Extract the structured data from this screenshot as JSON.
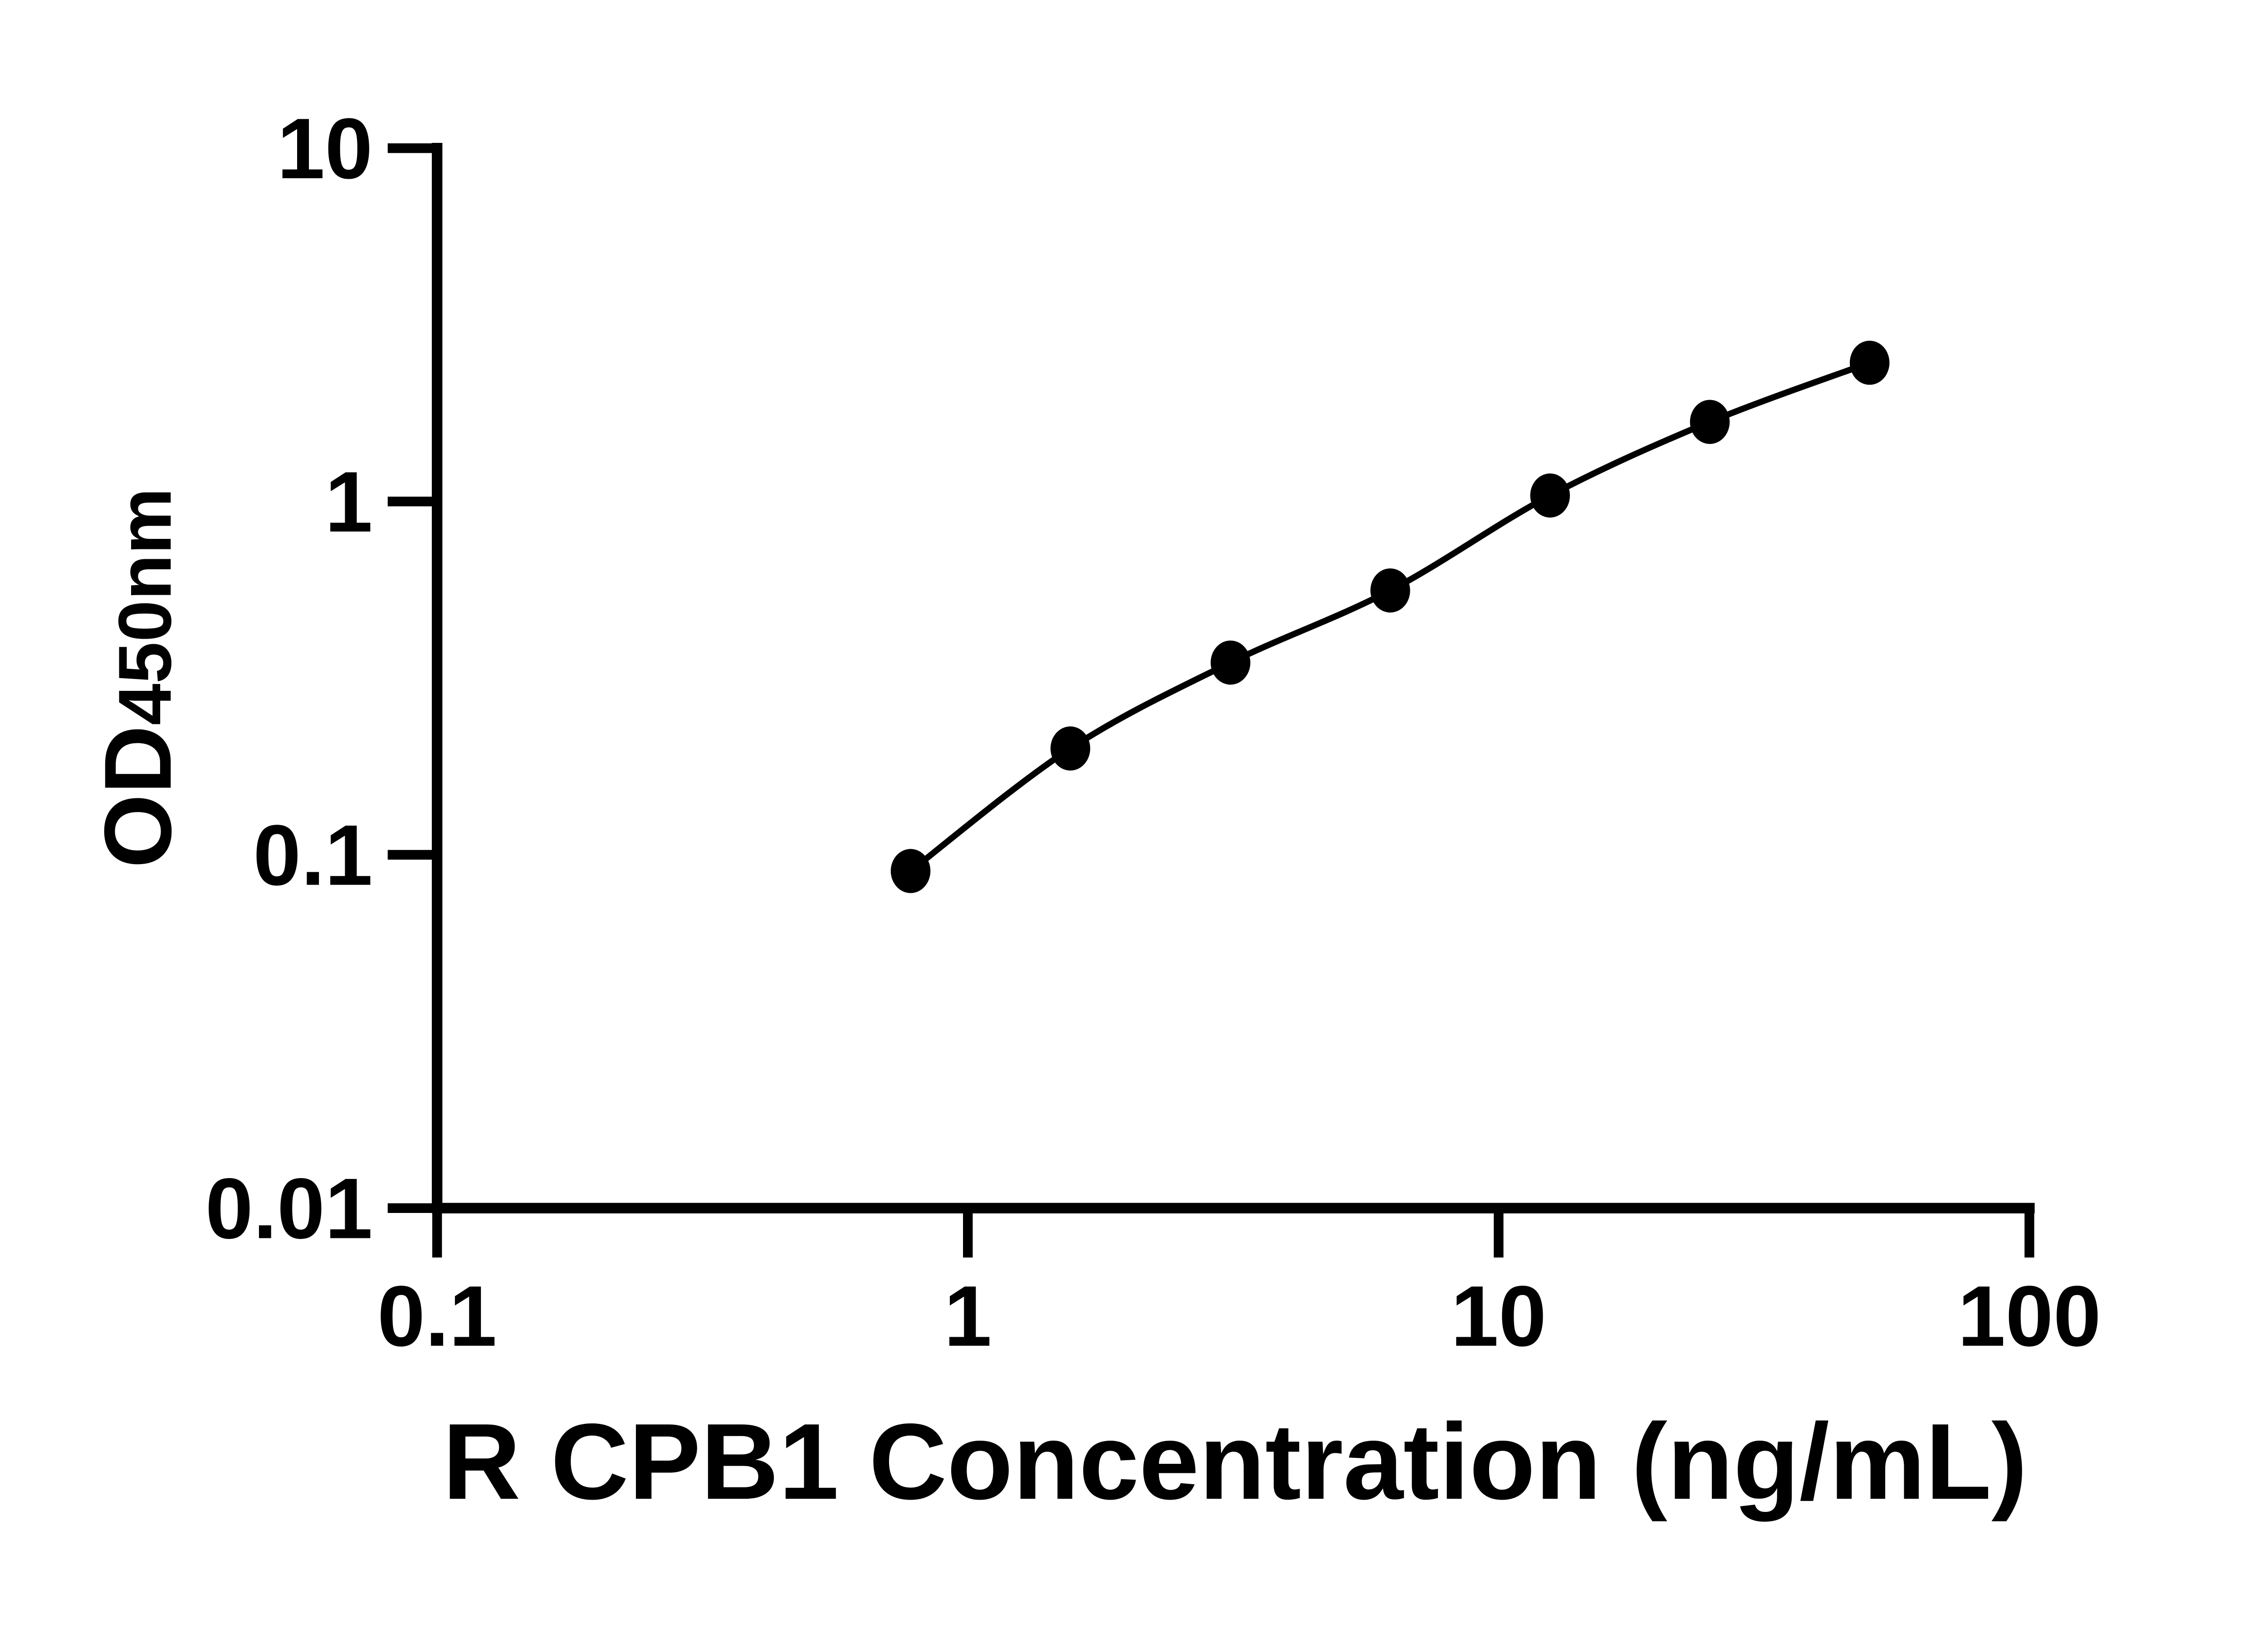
{
  "page": {
    "background": "#ffffff",
    "foreground": "#000000"
  },
  "chart_data": {
    "type": "scatter",
    "subtype": "smooth-line-with-markers",
    "title": "",
    "xlabel": "R CPB1 Concentration (ng/mL)",
    "ylabel": "OD450nm",
    "ylabel_main": "OD",
    "ylabel_sub": "450nm",
    "x_scale": "log10",
    "y_scale": "log10",
    "xlim": [
      0.1,
      100
    ],
    "ylim": [
      0.01,
      10
    ],
    "x_ticks": {
      "values": [
        0.1,
        1,
        10,
        100
      ],
      "labels": [
        "0.1",
        "1",
        "10",
        "100"
      ]
    },
    "y_ticks": {
      "values": [
        0.01,
        0.1,
        1,
        10
      ],
      "labels": [
        "0.01",
        "0.1",
        "1",
        "10"
      ]
    },
    "grid": false,
    "legend": false,
    "marker_color": "#000000",
    "line_color": "#000000",
    "series": [
      {
        "marker": "filled-circle",
        "line": "smooth",
        "color": "#000000",
        "points": [
          {
            "x": 0.78,
            "y": 0.09
          },
          {
            "x": 1.56,
            "y": 0.2
          },
          {
            "x": 3.125,
            "y": 0.35
          },
          {
            "x": 6.25,
            "y": 0.56
          },
          {
            "x": 12.5,
            "y": 1.04
          },
          {
            "x": 25,
            "y": 1.68
          },
          {
            "x": 50,
            "y": 2.47
          }
        ]
      }
    ]
  }
}
